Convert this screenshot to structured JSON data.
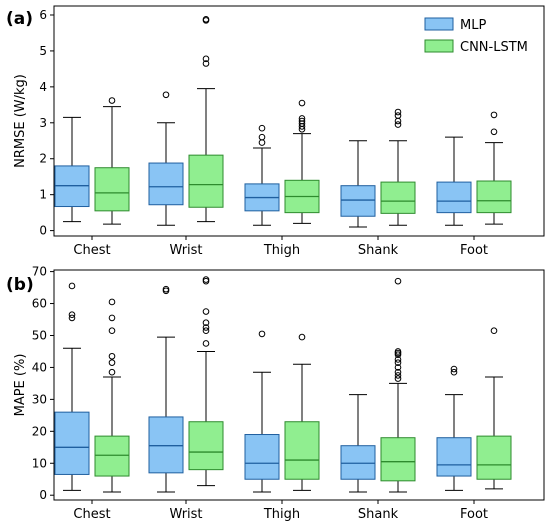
{
  "chart_data": [
    {
      "type": "box",
      "panel_label": "(a)",
      "ylabel": "NRMSE (W/kg)",
      "ylim": [
        -0.15,
        6.25
      ],
      "yticks": [
        0,
        1,
        2,
        3,
        4,
        5,
        6
      ],
      "categories": [
        "Chest",
        "Wrist",
        "Thigh",
        "Shank",
        "Foot"
      ],
      "legend": {
        "position": "top-right",
        "entries": [
          "MLP",
          "CNN-LSTM"
        ]
      },
      "series": [
        {
          "name": "MLP",
          "color": "#89c4f4",
          "stroke": "#1f5f9f",
          "boxes": [
            {
              "whisker_low": 0.25,
              "q1": 0.67,
              "median": 1.25,
              "q3": 1.8,
              "whisker_high": 3.15,
              "outliers": []
            },
            {
              "whisker_low": 0.15,
              "q1": 0.72,
              "median": 1.22,
              "q3": 1.88,
              "whisker_high": 3.0,
              "outliers": [
                3.78
              ]
            },
            {
              "whisker_low": 0.15,
              "q1": 0.55,
              "median": 0.92,
              "q3": 1.3,
              "whisker_high": 2.3,
              "outliers": [
                2.45,
                2.6,
                2.85
              ]
            },
            {
              "whisker_low": 0.1,
              "q1": 0.4,
              "median": 0.85,
              "q3": 1.25,
              "whisker_high": 2.5,
              "outliers": []
            },
            {
              "whisker_low": 0.15,
              "q1": 0.5,
              "median": 0.82,
              "q3": 1.35,
              "whisker_high": 2.6,
              "outliers": []
            }
          ]
        },
        {
          "name": "CNN-LSTM",
          "color": "#90ee90",
          "stroke": "#2e8b2e",
          "boxes": [
            {
              "whisker_low": 0.18,
              "q1": 0.55,
              "median": 1.05,
              "q3": 1.75,
              "whisker_high": 3.45,
              "outliers": [
                3.62
              ]
            },
            {
              "whisker_low": 0.25,
              "q1": 0.65,
              "median": 1.28,
              "q3": 2.1,
              "whisker_high": 3.95,
              "outliers": [
                4.65,
                4.78,
                5.85,
                5.88
              ]
            },
            {
              "whisker_low": 0.2,
              "q1": 0.5,
              "median": 0.95,
              "q3": 1.4,
              "whisker_high": 2.7,
              "outliers": [
                2.82,
                2.9,
                2.98,
                3.05,
                3.12,
                3.55
              ]
            },
            {
              "whisker_low": 0.15,
              "q1": 0.48,
              "median": 0.82,
              "q3": 1.35,
              "whisker_high": 2.5,
              "outliers": [
                2.95,
                3.05,
                3.2,
                3.3
              ]
            },
            {
              "whisker_low": 0.18,
              "q1": 0.5,
              "median": 0.83,
              "q3": 1.38,
              "whisker_high": 2.45,
              "outliers": [
                2.75,
                3.22
              ]
            }
          ]
        }
      ]
    },
    {
      "type": "box",
      "panel_label": "(b)",
      "ylabel": "MAPE (%)",
      "ylim": [
        -1.5,
        70.5
      ],
      "yticks": [
        0,
        10,
        20,
        30,
        40,
        50,
        60,
        70
      ],
      "categories": [
        "Chest",
        "Wrist",
        "Thigh",
        "Shank",
        "Foot"
      ],
      "series": [
        {
          "name": "MLP",
          "color": "#89c4f4",
          "stroke": "#1f5f9f",
          "boxes": [
            {
              "whisker_low": 1.5,
              "q1": 6.5,
              "median": 15.0,
              "q3": 26.0,
              "whisker_high": 46.0,
              "outliers": [
                55.5,
                56.5,
                65.5
              ]
            },
            {
              "whisker_low": 1.0,
              "q1": 7.0,
              "median": 15.5,
              "q3": 24.5,
              "whisker_high": 49.5,
              "outliers": [
                64.0,
                64.5
              ]
            },
            {
              "whisker_low": 1.0,
              "q1": 5.0,
              "median": 10.0,
              "q3": 19.0,
              "whisker_high": 38.5,
              "outliers": [
                50.5
              ]
            },
            {
              "whisker_low": 1.0,
              "q1": 5.0,
              "median": 10.0,
              "q3": 15.5,
              "whisker_high": 31.5,
              "outliers": []
            },
            {
              "whisker_low": 1.5,
              "q1": 6.0,
              "median": 9.5,
              "q3": 18.0,
              "whisker_high": 31.5,
              "outliers": [
                38.5,
                39.5
              ]
            }
          ]
        },
        {
          "name": "CNN-LSTM",
          "color": "#90ee90",
          "stroke": "#2e8b2e",
          "boxes": [
            {
              "whisker_low": 1.0,
              "q1": 6.0,
              "median": 12.5,
              "q3": 18.5,
              "whisker_high": 37.0,
              "outliers": [
                38.5,
                41.5,
                43.5,
                51.5,
                55.5,
                60.5
              ]
            },
            {
              "whisker_low": 3.0,
              "q1": 8.0,
              "median": 13.5,
              "q3": 23.0,
              "whisker_high": 45.0,
              "outliers": [
                47.5,
                51.5,
                52.5,
                54.0,
                57.5,
                67.0,
                67.5
              ]
            },
            {
              "whisker_low": 1.5,
              "q1": 5.0,
              "median": 11.0,
              "q3": 23.0,
              "whisker_high": 41.0,
              "outliers": [
                49.5
              ]
            },
            {
              "whisker_low": 1.0,
              "q1": 4.5,
              "median": 10.5,
              "q3": 18.0,
              "whisker_high": 35.0,
              "outliers": [
                36.5,
                37.5,
                38.5,
                40.0,
                41.5,
                42.5,
                44.0,
                44.5,
                45.0,
                67.0
              ]
            },
            {
              "whisker_low": 2.0,
              "q1": 5.0,
              "median": 9.5,
              "q3": 18.5,
              "whisker_high": 37.0,
              "outliers": [
                51.5
              ]
            }
          ]
        }
      ]
    }
  ]
}
